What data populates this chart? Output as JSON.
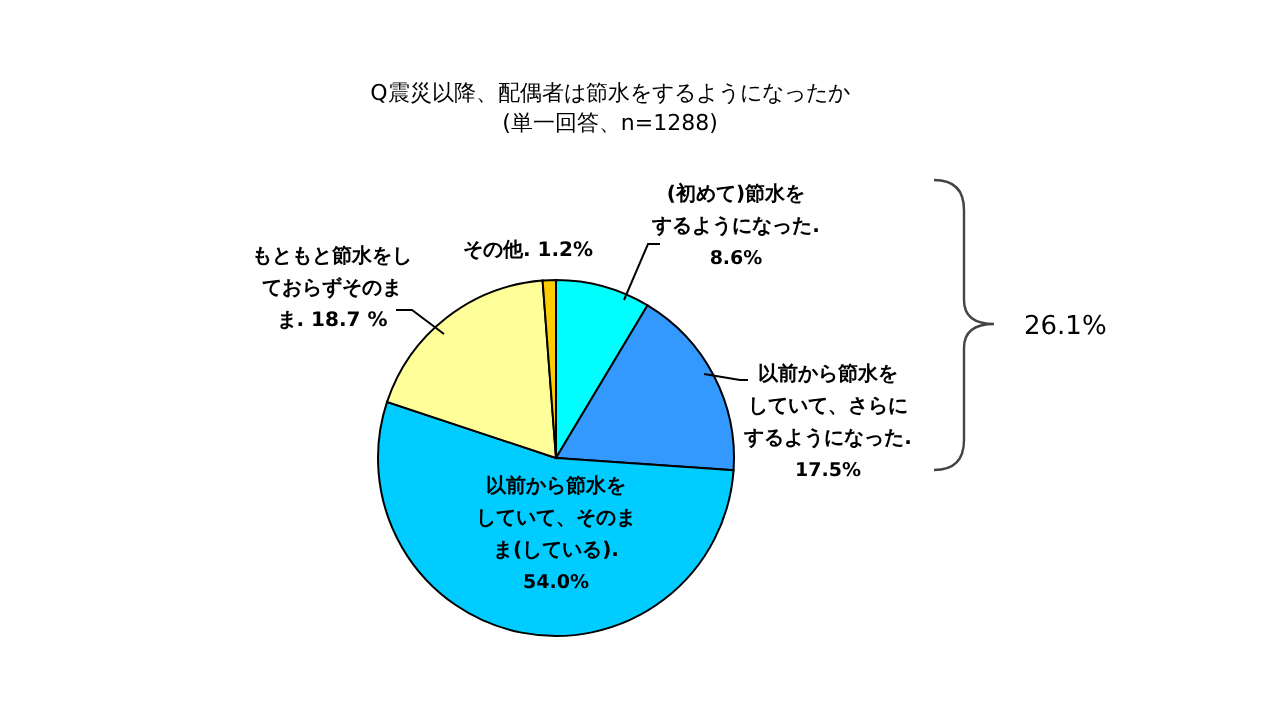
{
  "chart_data": {
    "type": "pie",
    "title": "Q震災以降、配偶者は節水をするようになったか",
    "subtitle": "(単一回答、n=1288)",
    "categories": [
      "(初めて)節水をするようになった.",
      "以前から節水をしていて、さらにするようになった.",
      "以前から節水をしていて、そのまま(している).",
      "もともと節水をしておらずそのまま.",
      "その他."
    ],
    "values": [
      8.6,
      17.5,
      54.0,
      18.7,
      1.2
    ],
    "value_labels": [
      "8.6%",
      "17.5%",
      "54.0%",
      "18.7 %",
      "1.2%"
    ],
    "colors": [
      "#00ffff",
      "#3399ff",
      "#00ccff",
      "#ffff99",
      "#ffcc00"
    ],
    "annotations": [
      "26.1%"
    ]
  }
}
